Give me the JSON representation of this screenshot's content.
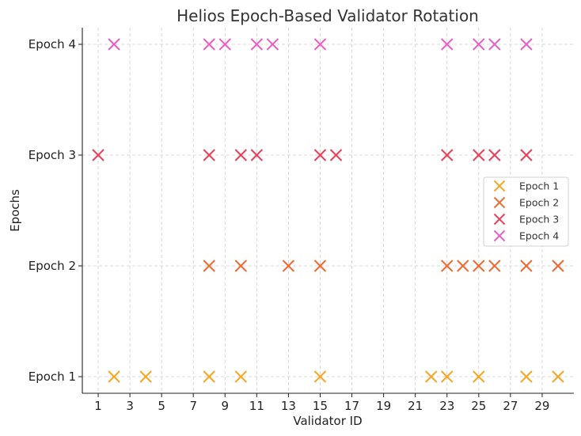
{
  "chart_data": {
    "type": "scatter",
    "title": "Helios Epoch-Based Validator Rotation",
    "xlabel": "Validator ID",
    "ylabel": "Epochs",
    "xlim": [
      0,
      31
    ],
    "ylim": [
      0.85,
      4.15
    ],
    "xticks": [
      1,
      3,
      5,
      7,
      9,
      11,
      13,
      15,
      17,
      19,
      21,
      23,
      25,
      27,
      29
    ],
    "yticks": [
      1,
      2,
      3,
      4
    ],
    "ytick_labels": [
      "Epoch 1",
      "Epoch 2",
      "Epoch 3",
      "Epoch 4"
    ],
    "grid": true,
    "marker": "x",
    "legend": {
      "placement": "center-right"
    },
    "series": [
      {
        "name": "Epoch 1",
        "color": "#f5a623",
        "x": [
          2,
          4,
          8,
          10,
          15,
          22,
          23,
          25,
          28,
          30
        ],
        "y": [
          1,
          1,
          1,
          1,
          1,
          1,
          1,
          1,
          1,
          1
        ]
      },
      {
        "name": "Epoch 2",
        "color": "#ee6a32",
        "x": [
          8,
          10,
          13,
          15,
          23,
          24,
          25,
          26,
          28,
          30
        ],
        "y": [
          2,
          2,
          2,
          2,
          2,
          2,
          2,
          2,
          2,
          2
        ]
      },
      {
        "name": "Epoch 3",
        "color": "#e8405a",
        "x": [
          1,
          8,
          10,
          11,
          15,
          16,
          23,
          25,
          26,
          28
        ],
        "y": [
          3,
          3,
          3,
          3,
          3,
          3,
          3,
          3,
          3,
          3
        ]
      },
      {
        "name": "Epoch 4",
        "color": "#e860c4",
        "x": [
          2,
          8,
          9,
          11,
          12,
          15,
          23,
          25,
          26,
          28
        ],
        "y": [
          4,
          4,
          4,
          4,
          4,
          4,
          4,
          4,
          4,
          4
        ]
      }
    ]
  }
}
